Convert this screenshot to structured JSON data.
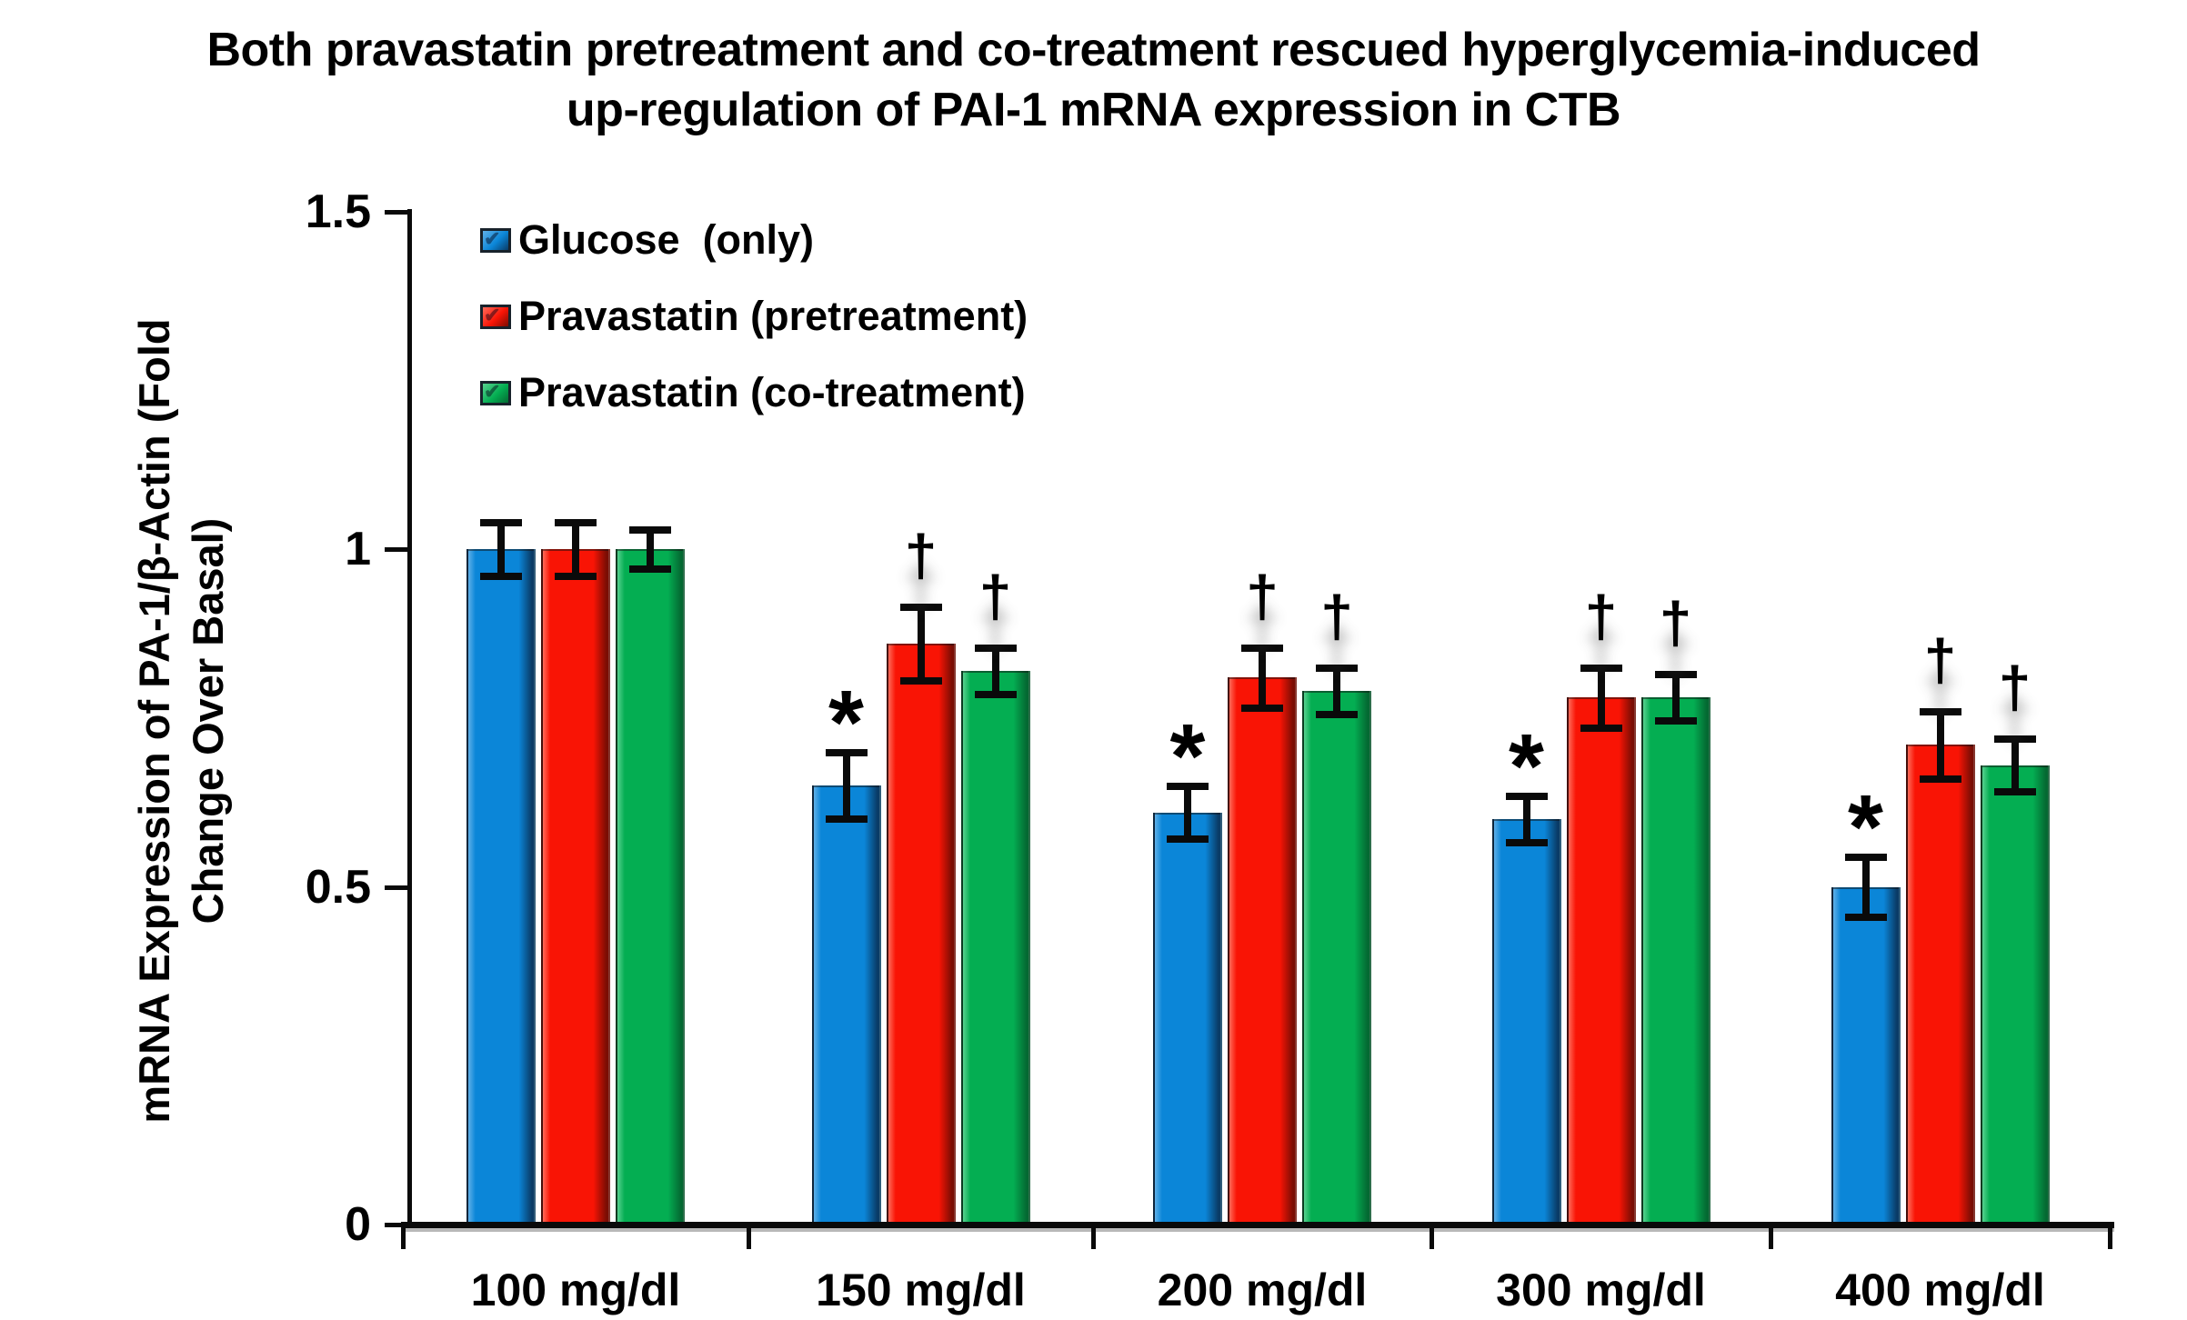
{
  "chart_data": {
    "type": "bar",
    "title": "Both pravastatin pretreatment and co-treatment rescued hyperglycemia-induced up-regulation of PAI-1 mRNA expression in CTB",
    "title_lines": [
      "Both pravastatin pretreatment and co-treatment rescued hyperglycemia-induced",
      "up-regulation of PAI-1 mRNA expression in CTB"
    ],
    "ylabel": "mRNA Expression of PA-1/β-Actin (Fold Change Over Basal)",
    "ylabel_lines": [
      "mRNA Expression of PA-1/β-Actin (Fold",
      "Change Over Basal)"
    ],
    "xlabel": "",
    "categories": [
      "100 mg/dl",
      "150 mg/dl",
      "200 mg/dl",
      "300 mg/dl",
      "400 mg/dl"
    ],
    "series": [
      {
        "name": "Glucose  (only)",
        "color": "#0B86D8",
        "color_light": "#5FB0E8",
        "color_dark": "#0A3B66",
        "values": [
          1.0,
          0.65,
          0.61,
          0.6,
          0.5
        ],
        "errors": [
          0.04,
          0.05,
          0.04,
          0.035,
          0.045
        ],
        "annotations": [
          "",
          "*",
          "*",
          "*",
          "*"
        ]
      },
      {
        "name": "Pravastatin (pretreatment)",
        "color": "#F91405",
        "color_light": "#FF6B5A",
        "color_dark": "#7A0D04",
        "values": [
          1.0,
          0.86,
          0.81,
          0.78,
          0.71
        ],
        "errors": [
          0.04,
          0.055,
          0.045,
          0.045,
          0.05
        ],
        "annotations": [
          "",
          "†",
          "†",
          "†",
          "†"
        ]
      },
      {
        "name": "Pravastatin (co-treatment)",
        "color": "#04AE52",
        "color_light": "#57D18F",
        "color_dark": "#046932",
        "values": [
          1.0,
          0.82,
          0.79,
          0.78,
          0.68
        ],
        "errors": [
          0.03,
          0.035,
          0.035,
          0.035,
          0.04
        ],
        "annotations": [
          "",
          "†",
          "†",
          "†",
          "†"
        ]
      }
    ],
    "ylim": [
      0,
      1.5
    ],
    "yticks": [
      {
        "v": 0,
        "label": "0"
      },
      {
        "v": 0.5,
        "label": "0.5"
      },
      {
        "v": 1,
        "label": "1"
      },
      {
        "v": 1.5,
        "label": "1.5"
      }
    ],
    "grid": false,
    "legend_position": "top-left-inside",
    "annotation_symbols": {
      "blue_bars": "*",
      "treatment_bars": "†"
    }
  }
}
